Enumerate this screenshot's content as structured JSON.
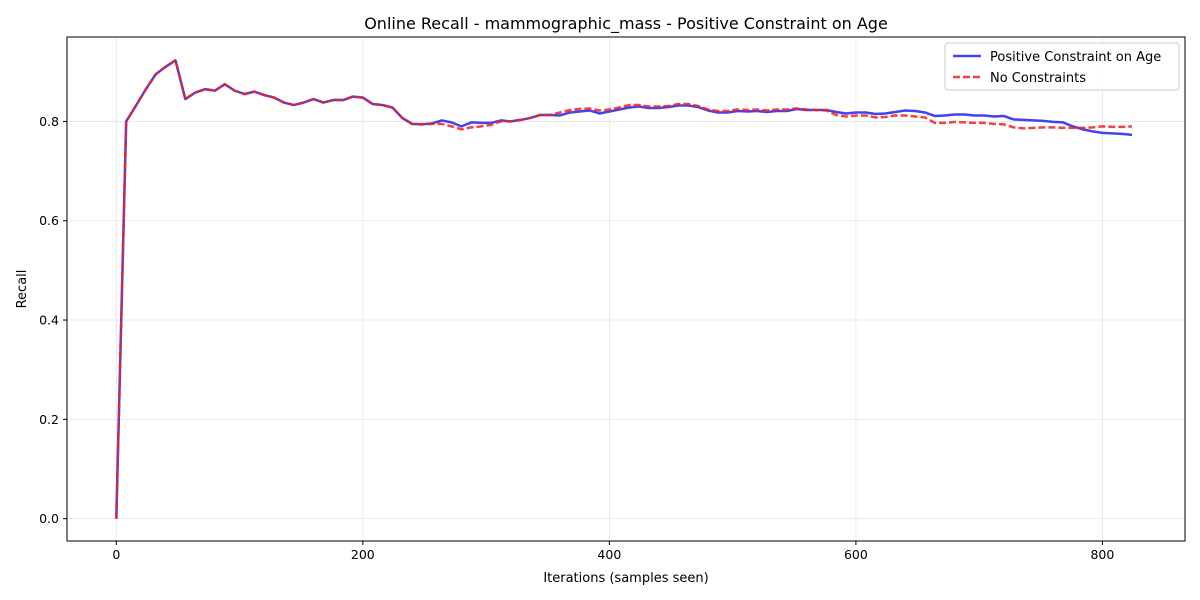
{
  "chart_data": {
    "type": "line",
    "title": "Online Recall - mammographic_mass - Positive Constraint on Age",
    "xlabel": "Iterations (samples seen)",
    "ylabel": "Recall",
    "xlim": [
      -40,
      867
    ],
    "ylim": [
      -0.045,
      0.97
    ],
    "xticks": [
      0,
      200,
      400,
      600,
      800
    ],
    "yticks": [
      0.0,
      0.2,
      0.4,
      0.6,
      0.8
    ],
    "xtick_labels": [
      "0",
      "200",
      "400",
      "600",
      "800"
    ],
    "ytick_labels": [
      "0.0",
      "0.2",
      "0.4",
      "0.6",
      "0.8"
    ],
    "grid": true,
    "legend_position": "top-right",
    "x": [
      0,
      8,
      16,
      24,
      32,
      40,
      48,
      56,
      64,
      72,
      80,
      88,
      96,
      104,
      112,
      120,
      128,
      136,
      144,
      152,
      160,
      168,
      176,
      184,
      192,
      200,
      208,
      216,
      224,
      232,
      240,
      248,
      256,
      264,
      272,
      280,
      288,
      296,
      304,
      312,
      320,
      328,
      336,
      344,
      352,
      360,
      368,
      376,
      384,
      392,
      400,
      408,
      416,
      424,
      432,
      440,
      448,
      456,
      464,
      472,
      480,
      488,
      496,
      504,
      512,
      520,
      528,
      536,
      544,
      552,
      560,
      568,
      576,
      584,
      592,
      600,
      608,
      616,
      624,
      632,
      640,
      648,
      656,
      664,
      672,
      680,
      688,
      696,
      704,
      712,
      720,
      728,
      736,
      744,
      752,
      760,
      768,
      776,
      784,
      792,
      800,
      808,
      816,
      824
    ],
    "series": [
      {
        "name": "Positive Constraint on Age",
        "color": "#2222ee",
        "style": "solid",
        "values": [
          0.0,
          0.8,
          0.832,
          0.865,
          0.895,
          0.91,
          0.923,
          0.845,
          0.858,
          0.865,
          0.862,
          0.875,
          0.862,
          0.855,
          0.86,
          0.853,
          0.848,
          0.838,
          0.833,
          0.838,
          0.845,
          0.838,
          0.843,
          0.843,
          0.85,
          0.848,
          0.835,
          0.833,
          0.828,
          0.807,
          0.795,
          0.794,
          0.796,
          0.802,
          0.798,
          0.79,
          0.798,
          0.797,
          0.797,
          0.802,
          0.8,
          0.803,
          0.807,
          0.813,
          0.813,
          0.812,
          0.818,
          0.82,
          0.822,
          0.816,
          0.82,
          0.824,
          0.828,
          0.83,
          0.827,
          0.827,
          0.829,
          0.832,
          0.832,
          0.829,
          0.822,
          0.818,
          0.818,
          0.821,
          0.82,
          0.821,
          0.819,
          0.821,
          0.821,
          0.825,
          0.823,
          0.823,
          0.823,
          0.819,
          0.816,
          0.818,
          0.818,
          0.815,
          0.816,
          0.819,
          0.822,
          0.821,
          0.818,
          0.811,
          0.812,
          0.814,
          0.814,
          0.812,
          0.812,
          0.81,
          0.811,
          0.804,
          0.803,
          0.802,
          0.801,
          0.799,
          0.798,
          0.79,
          0.784,
          0.78,
          0.777,
          0.776,
          0.775,
          0.773
        ]
      },
      {
        "name": "No Constraints",
        "color": "#ee2222",
        "style": "dashed",
        "values": [
          0.0,
          0.8,
          0.832,
          0.865,
          0.895,
          0.91,
          0.923,
          0.845,
          0.858,
          0.865,
          0.862,
          0.875,
          0.862,
          0.855,
          0.86,
          0.853,
          0.848,
          0.838,
          0.833,
          0.838,
          0.845,
          0.838,
          0.843,
          0.843,
          0.85,
          0.848,
          0.835,
          0.833,
          0.828,
          0.807,
          0.795,
          0.794,
          0.795,
          0.795,
          0.79,
          0.784,
          0.788,
          0.79,
          0.793,
          0.8,
          0.8,
          0.803,
          0.807,
          0.813,
          0.813,
          0.818,
          0.823,
          0.825,
          0.826,
          0.822,
          0.824,
          0.828,
          0.833,
          0.833,
          0.83,
          0.83,
          0.831,
          0.835,
          0.835,
          0.831,
          0.824,
          0.821,
          0.821,
          0.824,
          0.823,
          0.824,
          0.822,
          0.824,
          0.824,
          0.826,
          0.824,
          0.823,
          0.822,
          0.813,
          0.81,
          0.812,
          0.812,
          0.808,
          0.809,
          0.812,
          0.812,
          0.81,
          0.808,
          0.797,
          0.797,
          0.799,
          0.798,
          0.797,
          0.797,
          0.795,
          0.794,
          0.788,
          0.786,
          0.787,
          0.788,
          0.788,
          0.787,
          0.787,
          0.787,
          0.788,
          0.79,
          0.789,
          0.789,
          0.79
        ]
      }
    ]
  }
}
